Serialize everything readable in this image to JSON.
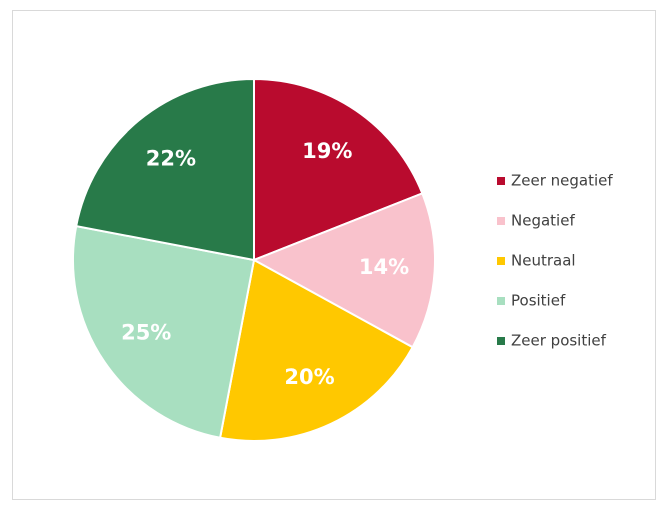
{
  "chart_data": {
    "type": "pie",
    "categories": [
      "Zeer negatief",
      "Negatief",
      "Neutraal",
      "Positief",
      "Zeer positief"
    ],
    "values": [
      19,
      14,
      20,
      25,
      22
    ],
    "value_labels": [
      "19%",
      "14%",
      "20%",
      "25%",
      "22%"
    ],
    "colors": [
      "#b90b2e",
      "#f9c2cc",
      "#ffc800",
      "#a8dfc0",
      "#287a49"
    ],
    "legend": "right"
  }
}
